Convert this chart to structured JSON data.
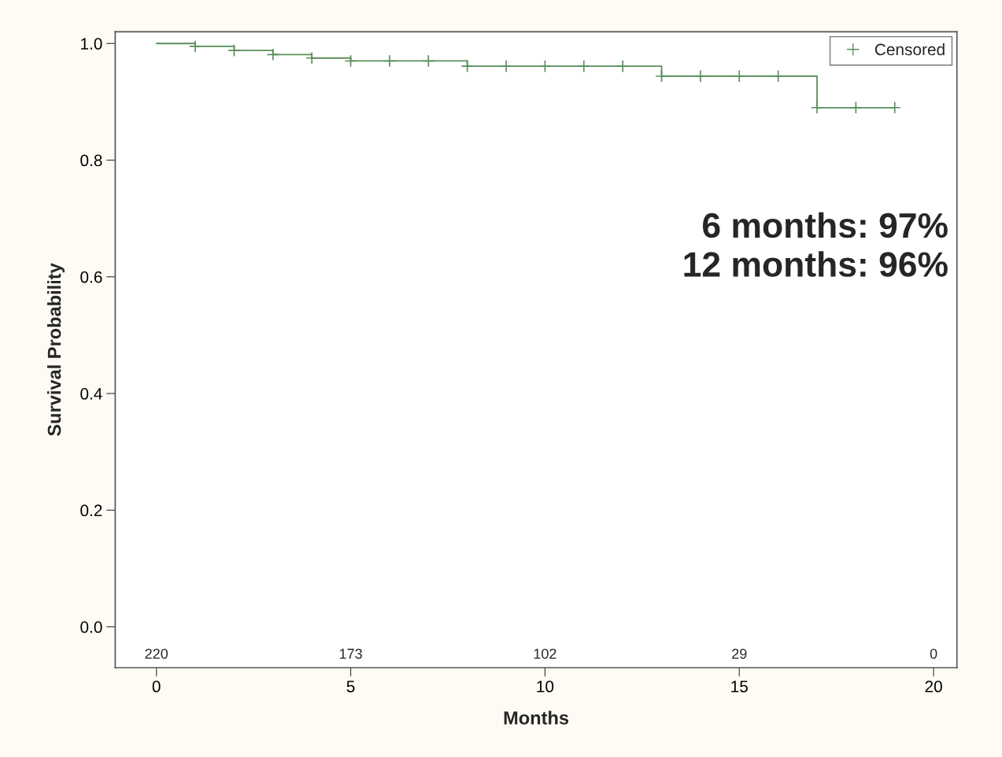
{
  "chart_data": {
    "type": "step",
    "xlabel": "Months",
    "ylabel": "Survival Probability",
    "xlim": [
      -1.06,
      20.6
    ],
    "ylim": [
      -0.07,
      1.02
    ],
    "xticks": [
      0,
      5,
      10,
      15,
      20
    ],
    "yticks": [
      {
        "value": 0,
        "label": "0.0"
      },
      {
        "value": 0.2,
        "label": "0.2"
      },
      {
        "value": 0.4,
        "label": "0.4"
      },
      {
        "value": 0.6,
        "label": "0.6"
      },
      {
        "value": 0.8,
        "label": "0.8"
      },
      {
        "value": 1,
        "label": "1.0"
      }
    ],
    "grid": false,
    "legend": "top right",
    "series": [
      {
        "color": "#5a8f5a",
        "x": [
          0,
          1,
          2,
          3,
          4,
          5,
          8,
          13,
          17,
          19
        ],
        "values": [
          1.0,
          0.995,
          0.988,
          0.981,
          0.975,
          0.97,
          0.961,
          0.944,
          0.89,
          0.89
        ]
      },
      {
        "type": "scatter",
        "name": "Censored",
        "color": "#5a8f5a",
        "marker": "cross",
        "x": [
          1,
          2,
          3,
          4,
          5,
          6,
          7,
          8,
          9,
          10,
          11,
          12,
          13,
          14,
          15,
          16,
          17,
          18,
          19
        ],
        "values": [
          0.995,
          0.988,
          0.981,
          0.975,
          0.97,
          0.97,
          0.97,
          0.961,
          0.961,
          0.961,
          0.961,
          0.961,
          0.944,
          0.944,
          0.944,
          0.944,
          0.89,
          0.89,
          0.89
        ]
      }
    ],
    "annotations": [
      "220",
      "173",
      "102",
      "29",
      "0",
      "6 months: 97%\n12 months: 96%"
    ]
  }
}
